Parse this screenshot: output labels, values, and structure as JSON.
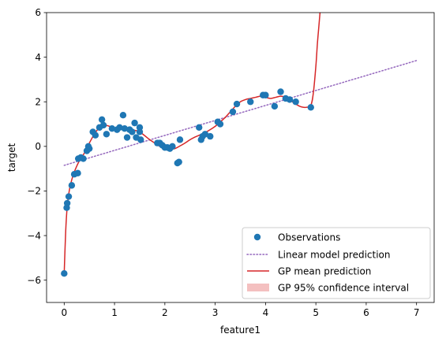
{
  "chart_data": {
    "type": "scatter",
    "title": "",
    "xlabel": "feature1",
    "ylabel": "target",
    "xlim": [
      -0.35,
      7.35
    ],
    "ylim": [
      -7,
      6
    ],
    "xticks": [
      0,
      1,
      2,
      3,
      4,
      5,
      6,
      7
    ],
    "xtick_labels": [
      "0",
      "1",
      "2",
      "3",
      "4",
      "5",
      "6",
      "7"
    ],
    "yticks": [
      -6,
      -4,
      -2,
      0,
      2,
      4,
      6
    ],
    "ytick_labels": [
      "−6",
      "−4",
      "−2",
      "0",
      "2",
      "4",
      "6"
    ],
    "grid": false,
    "legend_position": "lower-right",
    "colors": {
      "observations": "#1f77b4",
      "linear": "#9467bd",
      "gp_mean": "#d62728",
      "gp_ci": "#f4c0c0"
    },
    "series": [
      {
        "name": "Observations",
        "kind": "scatter",
        "points": [
          [
            0.0,
            -5.7
          ],
          [
            0.05,
            -2.75
          ],
          [
            0.06,
            -2.55
          ],
          [
            0.09,
            -2.25
          ],
          [
            0.15,
            -1.75
          ],
          [
            0.2,
            -1.25
          ],
          [
            0.27,
            -1.2
          ],
          [
            0.28,
            -0.55
          ],
          [
            0.33,
            -0.5
          ],
          [
            0.38,
            -0.55
          ],
          [
            0.45,
            -0.2
          ],
          [
            0.5,
            -0.1
          ],
          [
            0.48,
            0.0
          ],
          [
            0.57,
            0.65
          ],
          [
            0.62,
            0.5
          ],
          [
            0.7,
            0.85
          ],
          [
            0.75,
            1.2
          ],
          [
            0.78,
            0.95
          ],
          [
            0.84,
            0.55
          ],
          [
            0.95,
            0.8
          ],
          [
            1.05,
            0.75
          ],
          [
            1.1,
            0.85
          ],
          [
            1.17,
            1.4
          ],
          [
            1.2,
            0.8
          ],
          [
            1.25,
            0.4
          ],
          [
            1.3,
            0.75
          ],
          [
            1.35,
            0.65
          ],
          [
            1.4,
            1.05
          ],
          [
            1.43,
            0.4
          ],
          [
            1.5,
            0.85
          ],
          [
            1.52,
            0.3
          ],
          [
            1.5,
            0.65
          ],
          [
            1.85,
            0.15
          ],
          [
            1.9,
            0.15
          ],
          [
            1.95,
            0.05
          ],
          [
            2.0,
            -0.05
          ],
          [
            2.05,
            -0.05
          ],
          [
            2.1,
            -0.1
          ],
          [
            2.15,
            0.0
          ],
          [
            2.25,
            -0.75
          ],
          [
            2.28,
            -0.7
          ],
          [
            2.3,
            0.3
          ],
          [
            2.68,
            0.85
          ],
          [
            2.72,
            0.3
          ],
          [
            2.75,
            0.45
          ],
          [
            2.8,
            0.55
          ],
          [
            2.9,
            0.45
          ],
          [
            3.05,
            1.1
          ],
          [
            3.1,
            1.0
          ],
          [
            3.35,
            1.55
          ],
          [
            3.43,
            1.9
          ],
          [
            3.7,
            2.0
          ],
          [
            3.95,
            2.3
          ],
          [
            4.0,
            2.3
          ],
          [
            4.18,
            1.8
          ],
          [
            4.3,
            2.45
          ],
          [
            4.4,
            2.15
          ],
          [
            4.48,
            2.1
          ],
          [
            4.6,
            2.0
          ],
          [
            4.9,
            1.75
          ]
        ]
      },
      {
        "name": "Linear model prediction",
        "kind": "line",
        "style": "dotted",
        "x": [
          0,
          7
        ],
        "y": [
          -0.85,
          3.85
        ]
      },
      {
        "name": "GP mean prediction",
        "kind": "line",
        "style": "solid",
        "x": [
          0.0,
          0.03,
          0.06,
          0.1,
          0.15,
          0.2,
          0.3,
          0.4,
          0.5,
          0.6,
          0.7,
          0.8,
          0.9,
          1.0,
          1.1,
          1.2,
          1.3,
          1.4,
          1.5,
          1.6,
          1.7,
          1.8,
          1.9,
          2.0,
          2.1,
          2.2,
          2.3,
          2.4,
          2.5,
          2.6,
          2.7,
          2.8,
          2.9,
          3.0,
          3.1,
          3.2,
          3.3,
          3.4,
          3.5,
          3.6,
          3.7,
          3.8,
          3.9,
          4.0,
          4.1,
          4.2,
          4.3,
          4.4,
          4.5,
          4.6,
          4.7,
          4.8,
          4.9,
          4.95,
          5.0,
          5.03,
          5.06,
          5.09
        ],
        "y": [
          -5.7,
          -3.8,
          -2.7,
          -2.0,
          -1.5,
          -1.15,
          -0.65,
          -0.3,
          0.15,
          0.55,
          0.85,
          0.95,
          0.9,
          0.82,
          0.78,
          0.76,
          0.75,
          0.72,
          0.65,
          0.48,
          0.3,
          0.15,
          0.0,
          -0.1,
          -0.13,
          -0.1,
          0.02,
          0.15,
          0.3,
          0.42,
          0.52,
          0.62,
          0.75,
          0.9,
          1.1,
          1.3,
          1.55,
          1.8,
          2.0,
          2.1,
          2.15,
          2.2,
          2.25,
          2.2,
          2.15,
          2.2,
          2.25,
          2.2,
          2.05,
          1.9,
          1.78,
          1.75,
          1.85,
          2.4,
          3.6,
          4.6,
          5.4,
          6.2
        ]
      },
      {
        "name": "GP 95% confidence interval",
        "kind": "band",
        "visible_extent": "negligible"
      }
    ]
  }
}
